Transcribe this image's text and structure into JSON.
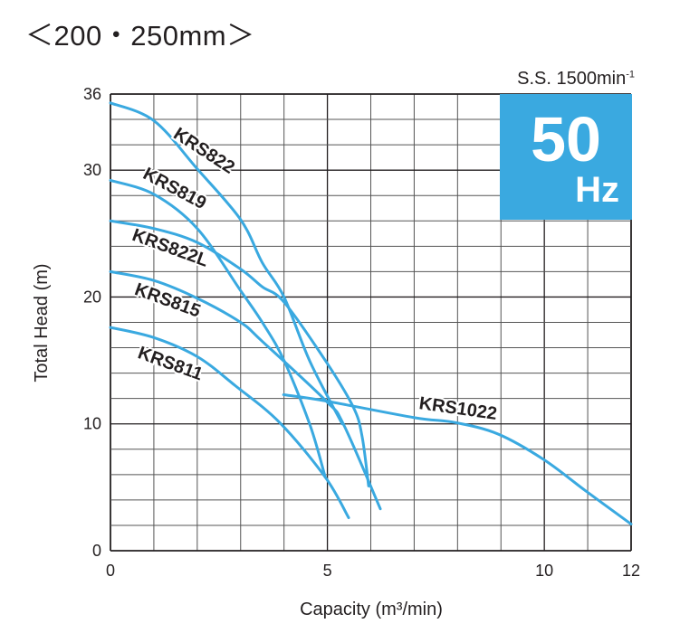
{
  "header": {
    "title": "＜200・250mm＞",
    "speed_label": "S.S. 1500min",
    "speed_sup": "-1"
  },
  "badge": {
    "value": "50",
    "unit": "Hz",
    "color": "#3aa9e0"
  },
  "chart_data": {
    "type": "line",
    "xlabel": "Capacity (m³/min)",
    "ylabel": "Total Head (m)",
    "xlim": [
      0,
      12
    ],
    "ylim": [
      0,
      36
    ],
    "xticks": [
      "0",
      "5",
      "10",
      "12"
    ],
    "xtick_values": [
      0,
      5,
      10,
      12
    ],
    "yticks": [
      "0",
      "10",
      "20",
      "30",
      "36"
    ],
    "ytick_values": [
      0,
      10,
      20,
      30,
      36
    ],
    "grid": {
      "x_step": 1,
      "y_step": 2,
      "on": true
    },
    "line_color": "#3aa9e0",
    "series": [
      {
        "name": "KRS822",
        "points": [
          [
            0,
            35.3
          ],
          [
            1,
            33.9
          ],
          [
            2,
            30.1
          ],
          [
            3,
            26.1
          ],
          [
            3.5,
            22.7
          ],
          [
            4,
            20
          ],
          [
            4.6,
            14.9
          ],
          [
            5.34,
            10
          ]
        ]
      },
      {
        "name": "KRS819",
        "points": [
          [
            0,
            29.2
          ],
          [
            1,
            28.1
          ],
          [
            2,
            25.4
          ],
          [
            3,
            20.5
          ],
          [
            3.5,
            18
          ],
          [
            4,
            15
          ],
          [
            4.6,
            9.9
          ],
          [
            4.95,
            5.8
          ]
        ]
      },
      {
        "name": "KRS822L",
        "points": [
          [
            0,
            26
          ],
          [
            1,
            25.4
          ],
          [
            2,
            24.3
          ],
          [
            3,
            22.2
          ],
          [
            3.5,
            20.8
          ],
          [
            4,
            19.6
          ],
          [
            4.97,
            14.9
          ],
          [
            5.6,
            11.3
          ],
          [
            5.8,
            9
          ],
          [
            5.95,
            5.1
          ]
        ]
      },
      {
        "name": "KRS815",
        "points": [
          [
            0,
            22
          ],
          [
            1,
            21.3
          ],
          [
            2,
            19.9
          ],
          [
            3,
            18
          ],
          [
            3.5,
            16.5
          ],
          [
            4.97,
            11.8
          ],
          [
            5.38,
            9.9
          ],
          [
            6.22,
            3.3
          ]
        ]
      },
      {
        "name": "KRS811",
        "points": [
          [
            0,
            17.6
          ],
          [
            1,
            16.8
          ],
          [
            2,
            15.3
          ],
          [
            2.88,
            13
          ],
          [
            3.9,
            10.1
          ],
          [
            4.95,
            5.8
          ],
          [
            5.49,
            2.6
          ]
        ]
      },
      {
        "name": "KRS1022",
        "points": [
          [
            3.99,
            12.3
          ],
          [
            4.97,
            11.8
          ],
          [
            6.99,
            10.5
          ],
          [
            7.95,
            10.1
          ],
          [
            8.93,
            9.2
          ],
          [
            9.98,
            7.2
          ],
          [
            10.96,
            4.7
          ],
          [
            12,
            2.1
          ]
        ]
      }
    ]
  }
}
